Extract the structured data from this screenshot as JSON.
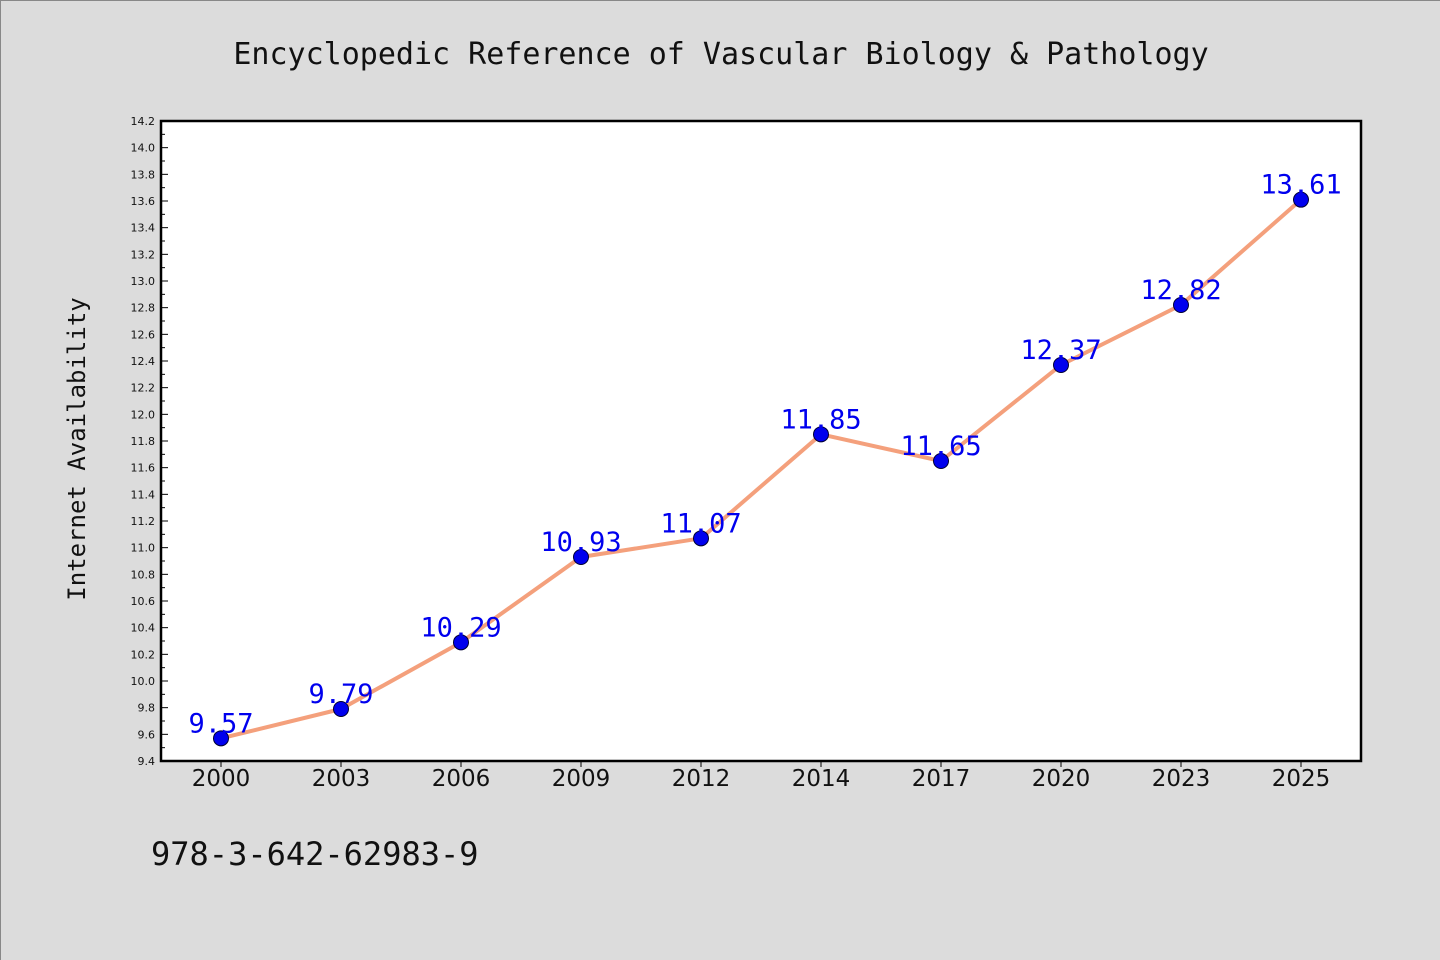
{
  "chart_data": {
    "type": "line",
    "title": "Encyclopedic Reference of Vascular Biology & Pathology",
    "xlabel": "",
    "ylabel": "Internet Availability",
    "categories": [
      "2000",
      "2003",
      "2006",
      "2009",
      "2012",
      "2014",
      "2017",
      "2020",
      "2023",
      "2025"
    ],
    "series": [
      {
        "values": [
          9.57,
          9.79,
          10.29,
          10.93,
          11.07,
          11.85,
          11.65,
          12.37,
          12.82,
          13.61
        ],
        "line_color": "#f4a07c",
        "marker_color": "#0000ee",
        "label_color": "#0000ee"
      }
    ],
    "ylim": [
      9.4,
      14.2
    ],
    "yticks": [
      "9.4",
      "9.6",
      "9.8",
      "10.0",
      "10.2",
      "10.4",
      "10.6",
      "10.8",
      "11.0",
      "11.2",
      "11.4",
      "11.6",
      "11.8",
      "12.0",
      "12.2",
      "12.4",
      "12.6",
      "12.8",
      "13.0",
      "13.2",
      "13.4",
      "13.6",
      "13.8",
      "14.0",
      "14.2"
    ],
    "grid": false,
    "legend": "none",
    "footer": "978-3-642-62983-9",
    "colors": {
      "background": "#dcdcdc",
      "plot_background": "#ffffff",
      "frame": "#000000"
    }
  }
}
